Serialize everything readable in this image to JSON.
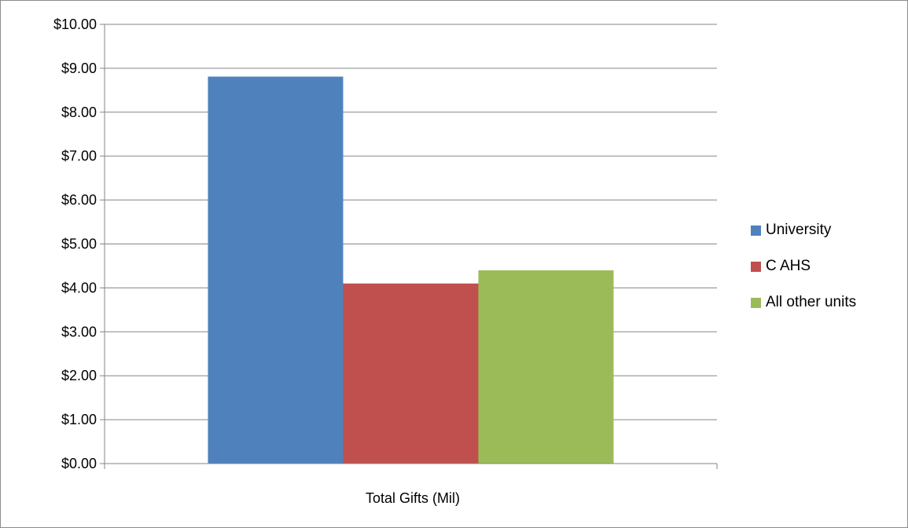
{
  "chart_data": {
    "type": "bar",
    "categories": [
      "Total Gifts (Mil)"
    ],
    "series": [
      {
        "name": "University",
        "values": [
          8.81
        ],
        "color": "#4f81bd"
      },
      {
        "name": "C AHS",
        "values": [
          4.1
        ],
        "color": "#c0504d"
      },
      {
        "name": "All other units",
        "values": [
          4.4
        ],
        "color": "#9bbb59"
      }
    ],
    "ylim": [
      0,
      10
    ],
    "yticks": [
      "$0.00",
      "$1.00",
      "$2.00",
      "$3.00",
      "$4.00",
      "$5.00",
      "$6.00",
      "$7.00",
      "$8.00",
      "$9.00",
      "$10.00"
    ],
    "grid": true,
    "legend_position": "right"
  }
}
